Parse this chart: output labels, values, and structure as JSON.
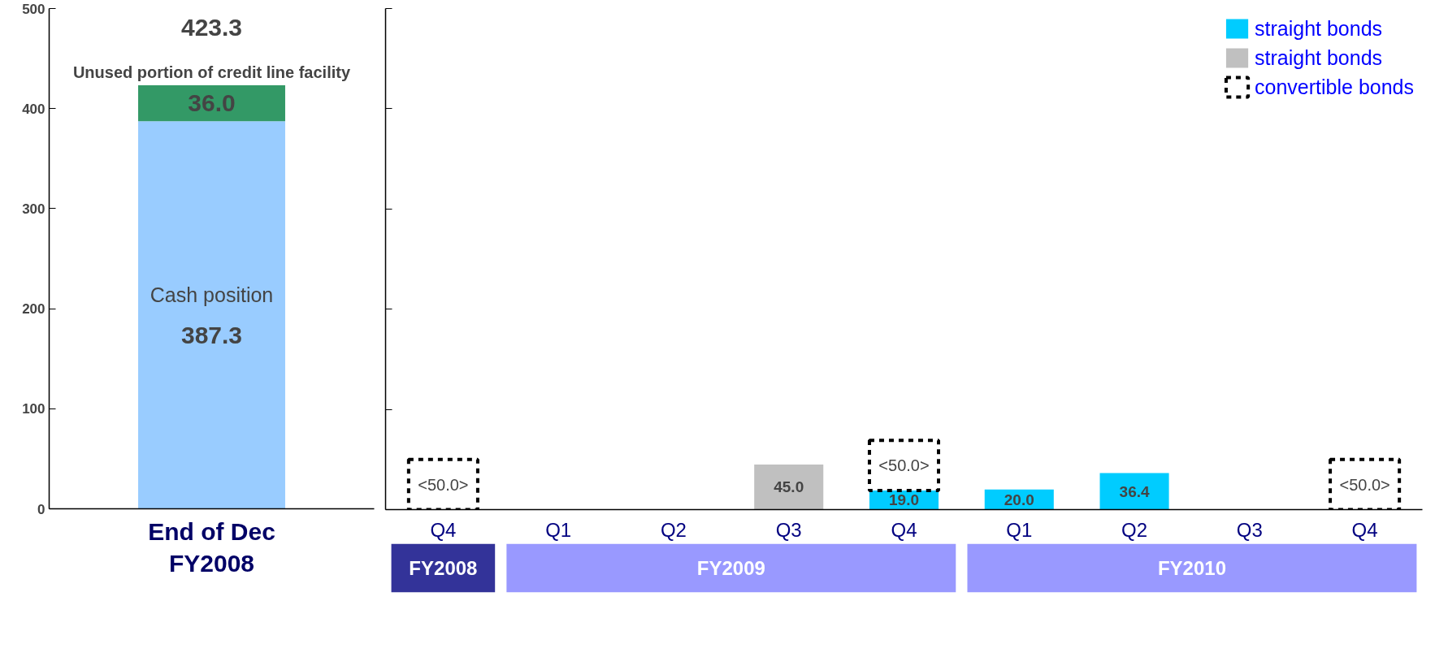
{
  "chart_data": [
    {
      "type": "bar",
      "stacked": true,
      "categories": [
        "End of Dec\nFY2008"
      ],
      "series": [
        {
          "name": "Cash position",
          "color": "#99ccff",
          "values": [
            387.3
          ],
          "value_labels": [
            "387.3"
          ]
        },
        {
          "name": "Unused portion of credit line facility",
          "color": "#339966",
          "values": [
            36.0
          ],
          "value_labels": [
            "36.0"
          ]
        }
      ],
      "totals": [
        "423.3"
      ],
      "data_labels": true,
      "ylim": [
        0,
        500
      ],
      "yticks": [
        0,
        100,
        200,
        300,
        400,
        500
      ],
      "grid": false,
      "legend": false
    },
    {
      "type": "bar",
      "stacked": true,
      "categories": [
        "Q4",
        "Q1",
        "Q2",
        "Q3",
        "Q4",
        "Q1",
        "Q2",
        "Q3",
        "Q4"
      ],
      "series": [
        {
          "name": "straight bonds",
          "color": "#00ccff",
          "values": [
            null,
            null,
            null,
            null,
            19.0,
            20.0,
            36.4,
            null,
            null
          ],
          "value_labels": [
            null,
            null,
            null,
            null,
            "19.0",
            "20.0",
            "36.4",
            null,
            null
          ]
        },
        {
          "name": "straight bonds",
          "color": "#c0c0c0",
          "values": [
            null,
            null,
            null,
            45.0,
            null,
            null,
            null,
            null,
            null
          ],
          "value_labels": [
            null,
            null,
            null,
            "45.0",
            null,
            null,
            null,
            null,
            null
          ]
        },
        {
          "name": "convertible bonds",
          "color": "#000000",
          "line_style": "dashed",
          "values": [
            50.0,
            null,
            null,
            null,
            50.0,
            null,
            null,
            null,
            50.0
          ],
          "value_labels": [
            "<50.0>",
            null,
            null,
            null,
            "<50.0>",
            null,
            null,
            null,
            "<50.0>"
          ]
        }
      ],
      "data_labels": true,
      "ylim": [
        0,
        500
      ],
      "yticks": [
        {
          "value": 0,
          "label": null
        },
        {
          "value": 100,
          "label": null
        },
        {
          "value": 200,
          "label": null
        },
        {
          "value": 300,
          "label": null
        },
        {
          "value": 400,
          "label": null
        },
        {
          "value": 500,
          "label": null
        }
      ],
      "tick_labels": "x",
      "grid": false,
      "legend": "top right",
      "annotations": [
        "FY2008",
        "FY2009",
        "FY2010"
      ]
    }
  ]
}
